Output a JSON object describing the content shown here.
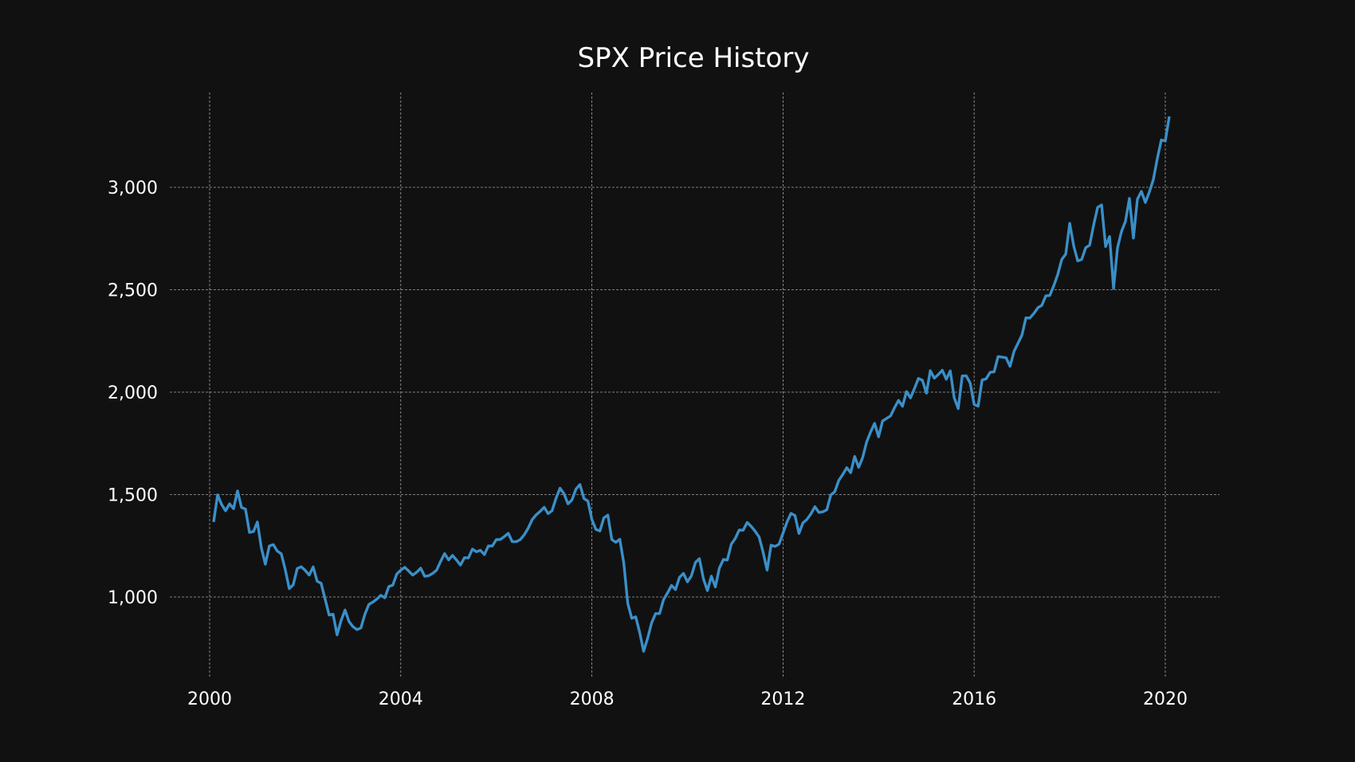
{
  "chart_data": {
    "type": "line",
    "title": "SPX Price History",
    "xlabel": "",
    "ylabel": "",
    "xlim": [
      1999.5,
      2021.3
    ],
    "ylim": [
      630,
      3560
    ],
    "grid": true,
    "legend": "none",
    "line_color": "#3a8fc8",
    "background_color": "#111111",
    "x_ticks": [
      {
        "value": 2000,
        "label": "2000"
      },
      {
        "value": 2004,
        "label": "2004"
      },
      {
        "value": 2008,
        "label": "2008"
      },
      {
        "value": 2012,
        "label": "2012"
      },
      {
        "value": 2016,
        "label": "2016"
      },
      {
        "value": 2020,
        "label": "2020"
      }
    ],
    "y_ticks": [
      {
        "value": 1000,
        "label": "1,000"
      },
      {
        "value": 1500,
        "label": "1,500"
      },
      {
        "value": 2000,
        "label": "2,000"
      },
      {
        "value": 2500,
        "label": "2,500"
      },
      {
        "value": 3000,
        "label": "3,000"
      }
    ],
    "series": [
      {
        "name": "SPX",
        "x_start": "2000-02",
        "x_step": "1 month",
        "values": [
          1366,
          1499,
          1452,
          1421,
          1455,
          1431,
          1518,
          1437,
          1429,
          1315,
          1320,
          1366,
          1240,
          1160,
          1249,
          1256,
          1224,
          1211,
          1134,
          1041,
          1060,
          1139,
          1148,
          1130,
          1107,
          1147,
          1077,
          1067,
          990,
          912,
          916,
          815,
          885,
          936,
          880,
          855,
          841,
          849,
          916,
          964,
          975,
          990,
          1008,
          996,
          1051,
          1058,
          1112,
          1131,
          1145,
          1127,
          1107,
          1121,
          1141,
          1101,
          1104,
          1115,
          1131,
          1174,
          1212,
          1181,
          1203,
          1181,
          1156,
          1192,
          1191,
          1234,
          1221,
          1228,
          1207,
          1249,
          1249,
          1280,
          1281,
          1295,
          1311,
          1270,
          1270,
          1280,
          1304,
          1336,
          1378,
          1401,
          1418,
          1438,
          1407,
          1421,
          1482,
          1531,
          1504,
          1455,
          1474,
          1527,
          1549,
          1481,
          1468,
          1378,
          1330,
          1322,
          1386,
          1400,
          1280,
          1267,
          1282,
          1166,
          969,
          896,
          903,
          826,
          735,
          798,
          873,
          919,
          919,
          987,
          1020,
          1057,
          1036,
          1096,
          1115,
          1074,
          1104,
          1169,
          1187,
          1089,
          1031,
          1102,
          1049,
          1141,
          1183,
          1181,
          1258,
          1286,
          1327,
          1326,
          1364,
          1345,
          1321,
          1293,
          1219,
          1131,
          1253,
          1247,
          1258,
          1312,
          1366,
          1408,
          1398,
          1310,
          1362,
          1379,
          1406,
          1441,
          1413,
          1416,
          1426,
          1498,
          1514,
          1569,
          1598,
          1631,
          1607,
          1686,
          1633,
          1681,
          1757,
          1806,
          1848,
          1782,
          1859,
          1872,
          1884,
          1924,
          1960,
          1931,
          2003,
          1972,
          2018,
          2067,
          2058,
          1995,
          2105,
          2068,
          2086,
          2107,
          2063,
          2104,
          1972,
          1920,
          2079,
          2080,
          2044,
          1940,
          1932,
          2060,
          2065,
          2097,
          2099,
          2174,
          2171,
          2168,
          2126,
          2199,
          2239,
          2279,
          2363,
          2362,
          2384,
          2412,
          2424,
          2470,
          2472,
          2520,
          2575,
          2648,
          2674,
          2824,
          2714,
          2641,
          2648,
          2705,
          2718,
          2816,
          2902,
          2914,
          2711,
          2760,
          2507,
          2704,
          2784,
          2834,
          2946,
          2752,
          2942,
          2980,
          2926,
          2977,
          3038,
          3141,
          3231,
          3226,
          3346
        ]
      }
    ]
  }
}
